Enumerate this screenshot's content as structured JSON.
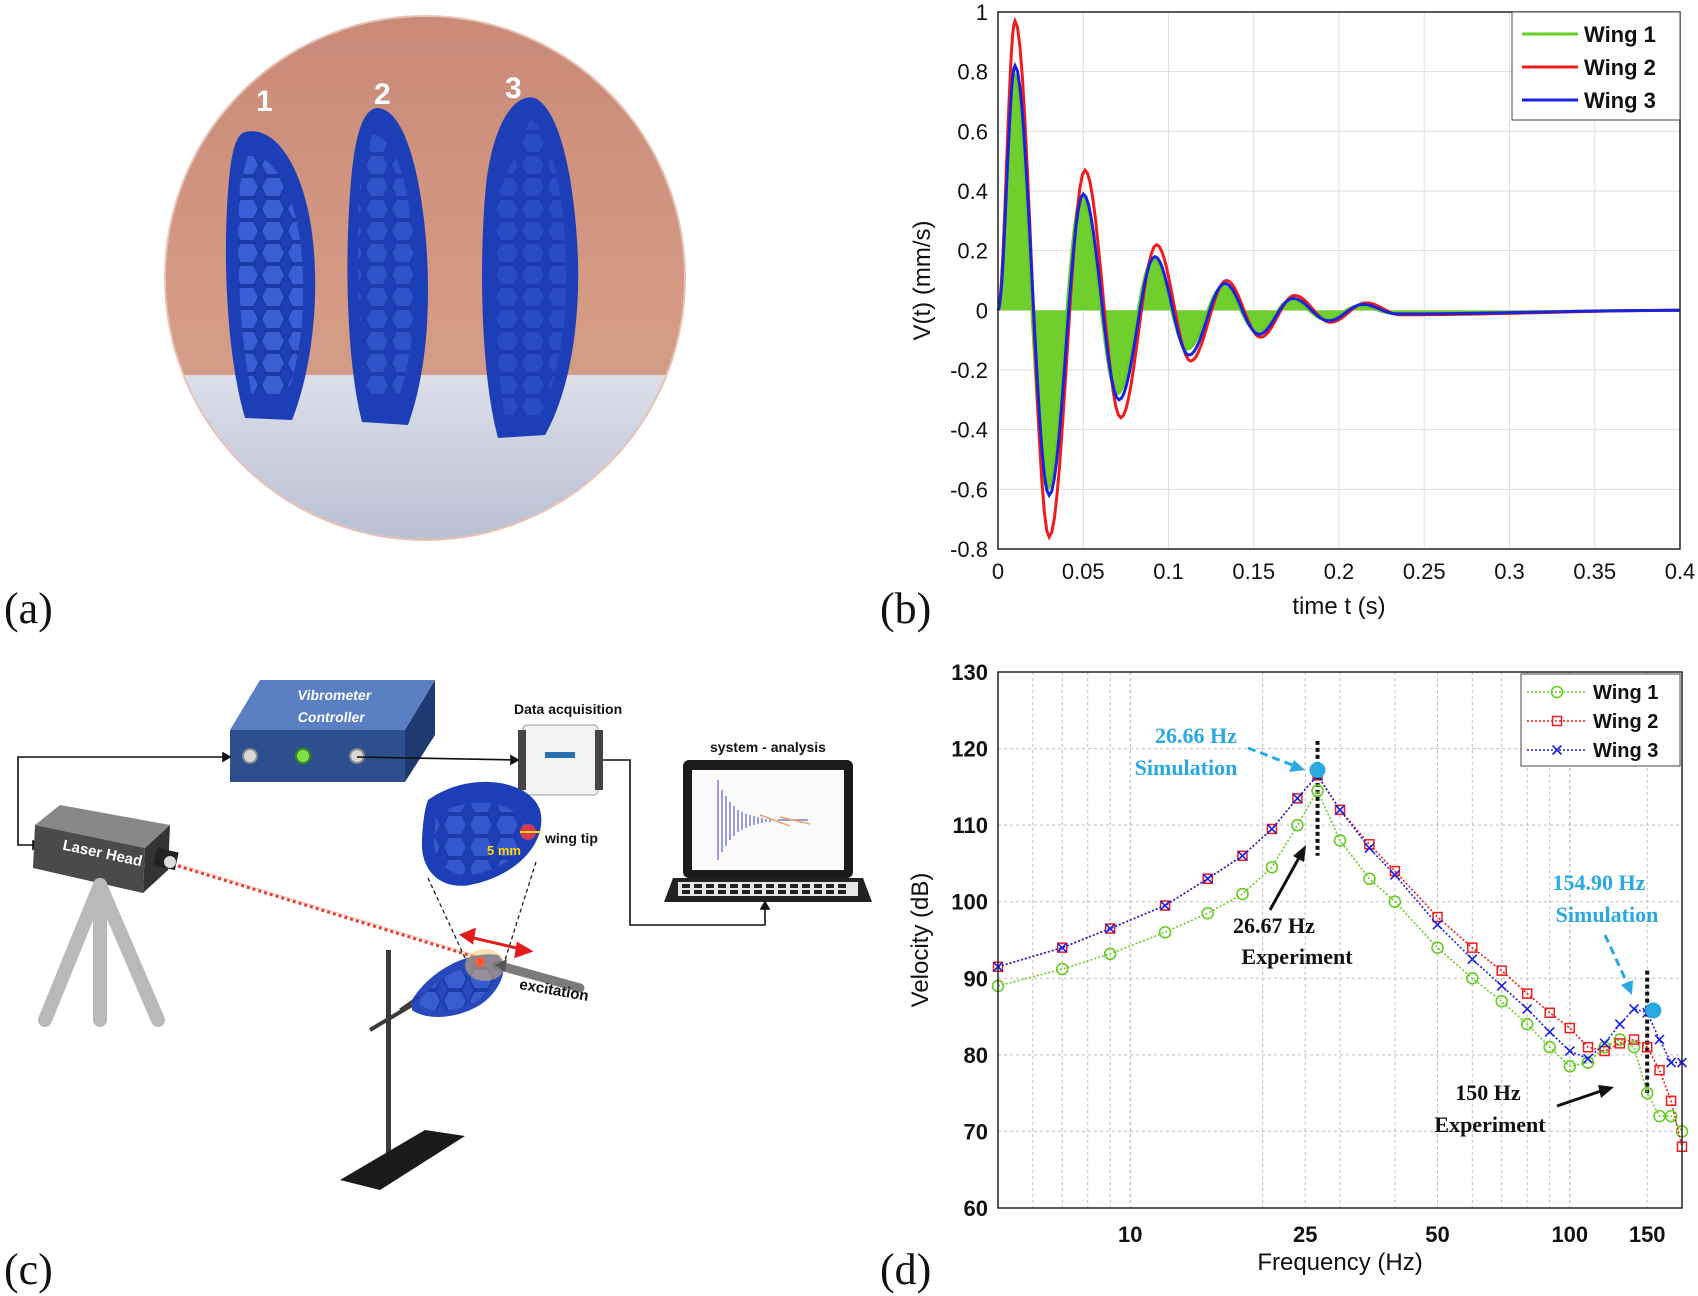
{
  "panels": {
    "a": {
      "label": "(a)",
      "wing_numbers": [
        "1",
        "2",
        "3"
      ]
    },
    "b": {
      "label": "(b)"
    },
    "c": {
      "label": "(c)",
      "vibrometer_line1": "Vibrometer",
      "vibrometer_line2": "Controller",
      "data_acquisition": "Data acquisition",
      "system_analysis": "system - analysis",
      "laser_head": "Laser Head",
      "wing_tip": "wing tip",
      "tip_distance": "5 mm",
      "excitation": "excitation"
    },
    "d": {
      "label": "(d)"
    }
  },
  "colors": {
    "wing1": "#66cc22",
    "wing2": "#ee1c1c",
    "wing3": "#1a22dd",
    "simulation": "#29a9e1",
    "device_blue": "#2d4f8e"
  },
  "chart_data": [
    {
      "type": "line",
      "panel": "b",
      "xlabel": "time t (s)",
      "ylabel": "V(t) (mm/s)",
      "xlim": [
        0,
        0.4
      ],
      "ylim": [
        -0.8,
        1
      ],
      "xticks": [
        0,
        0.05,
        0.1,
        0.15,
        0.2,
        0.25,
        0.3,
        0.35,
        0.4
      ],
      "yticks": [
        -0.8,
        -0.6,
        -0.4,
        -0.2,
        0,
        0.2,
        0.4,
        0.6,
        0.8,
        1
      ],
      "grid": true,
      "legend_position": "top-right",
      "series": [
        {
          "name": "Wing 1",
          "color": "#66cc22",
          "fill": true,
          "x": [
            0,
            0.009,
            0.029,
            0.049,
            0.07,
            0.091,
            0.111,
            0.132,
            0.152,
            0.172,
            0.192,
            0.212,
            0.232,
            0.4
          ],
          "y": [
            0,
            0.8,
            -0.6,
            0.38,
            -0.28,
            0.17,
            -0.13,
            0.08,
            -0.07,
            0.035,
            -0.03,
            0.015,
            -0.01,
            0
          ]
        },
        {
          "name": "Wing 2",
          "color": "#ee1c1c",
          "fill": false,
          "x": [
            0,
            0.01,
            0.03,
            0.051,
            0.072,
            0.093,
            0.113,
            0.134,
            0.154,
            0.174,
            0.195,
            0.216,
            0.236,
            0.4
          ],
          "y": [
            0,
            0.97,
            -0.76,
            0.47,
            -0.36,
            0.22,
            -0.17,
            0.1,
            -0.09,
            0.05,
            -0.04,
            0.025,
            -0.015,
            0
          ]
        },
        {
          "name": "Wing 3",
          "color": "#1a22dd",
          "fill": false,
          "x": [
            0,
            0.01,
            0.03,
            0.05,
            0.071,
            0.092,
            0.112,
            0.133,
            0.153,
            0.173,
            0.194,
            0.214,
            0.234,
            0.4
          ],
          "y": [
            0,
            0.82,
            -0.62,
            0.39,
            -0.3,
            0.18,
            -0.15,
            0.09,
            -0.08,
            0.04,
            -0.035,
            0.02,
            -0.012,
            0
          ]
        }
      ]
    },
    {
      "type": "line",
      "panel": "d",
      "xlabel": "Frequency (Hz)",
      "ylabel": "Velocity (dB)",
      "xscale": "log",
      "xlim": [
        5,
        180
      ],
      "ylim": [
        60,
        130
      ],
      "xticks": [
        10,
        25,
        50,
        100,
        150
      ],
      "xtick_labels": [
        "10",
        "25",
        "50",
        "100",
        "150"
      ],
      "yticks": [
        60,
        70,
        80,
        90,
        100,
        110,
        120,
        130
      ],
      "grid": true,
      "legend_position": "top-right",
      "series": [
        {
          "name": "Wing 1",
          "color": "#66cc22",
          "marker": "circle",
          "x": [
            5,
            7,
            9,
            12,
            15,
            18,
            21,
            24,
            26.67,
            30,
            35,
            40,
            50,
            60,
            70,
            80,
            90,
            100,
            110,
            120,
            130,
            140,
            150,
            160,
            170,
            180
          ],
          "y": [
            89,
            91.2,
            93.2,
            96,
            98.5,
            101,
            104.5,
            110,
            114.5,
            108,
            103,
            100,
            94,
            90,
            87,
            84,
            81,
            78.5,
            79,
            81,
            82,
            81,
            75,
            72,
            72,
            70
          ]
        },
        {
          "name": "Wing 2",
          "color": "#ee1c1c",
          "marker": "square",
          "x": [
            5,
            7,
            9,
            12,
            15,
            18,
            21,
            24,
            26.67,
            30,
            35,
            40,
            50,
            60,
            70,
            80,
            90,
            100,
            110,
            120,
            130,
            140,
            150,
            160,
            170,
            180
          ],
          "y": [
            91.5,
            94,
            96.5,
            99.5,
            103,
            106,
            109.5,
            113.5,
            116.5,
            112,
            107.5,
            104,
            98,
            94,
            91,
            88,
            85.5,
            83.5,
            81,
            80.5,
            81.5,
            82,
            81,
            78,
            74,
            68
          ]
        },
        {
          "name": "Wing 3",
          "color": "#1a22dd",
          "marker": "x",
          "x": [
            5,
            7,
            9,
            12,
            15,
            18,
            21,
            24,
            26.67,
            30,
            35,
            40,
            50,
            60,
            70,
            80,
            90,
            100,
            110,
            120,
            130,
            140,
            150,
            160,
            170,
            180
          ],
          "y": [
            91.5,
            94,
            96.5,
            99.5,
            103,
            106,
            109.5,
            113.5,
            116.5,
            112,
            107,
            103.5,
            97,
            92.5,
            89,
            86,
            83,
            80.5,
            79.5,
            81.5,
            84,
            86,
            85.5,
            82,
            79,
            79
          ]
        }
      ],
      "annotations": {
        "sim1_value": "26.66 Hz",
        "sim1_text": "Simulation",
        "exp1_value": "26.67 Hz",
        "exp1_text": "Experiment",
        "sim2_value": "154.90 Hz",
        "sim2_text": "Simulation",
        "exp2_value": "150 Hz",
        "exp2_text": "Experiment",
        "sim_points": [
          {
            "x": 26.66,
            "y": 117.2
          },
          {
            "x": 154.9,
            "y": 85.8
          }
        ],
        "exp_lines": [
          26.67,
          150
        ]
      }
    }
  ]
}
